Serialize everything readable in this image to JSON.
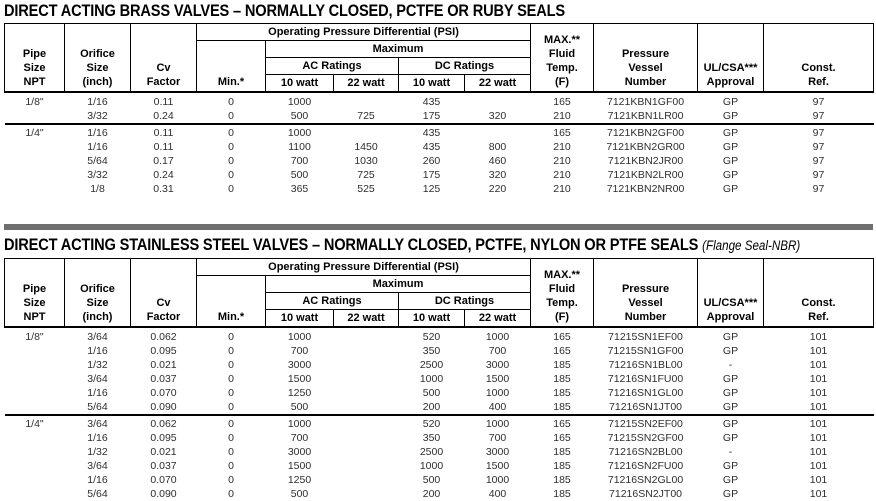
{
  "header": {
    "pipe_size": "Pipe\nSize\nNPT",
    "orifice_size": "Orifice\nSize\n(inch)",
    "cv_factor": "Cv\nFactor",
    "opd": "Operating Pressure Differential (PSI)",
    "maximum": "Maximum",
    "min": "Min.*",
    "ac_ratings": "AC Ratings",
    "dc_ratings": "DC Ratings",
    "watt_10": "10 watt",
    "watt_22": "22 watt",
    "max_temp": "MAX.**\nFluid\nTemp.\n(F)",
    "vessel": "Pressure\nVessel\nNumber",
    "approval": "UL/CSA***\nApproval",
    "const_ref": "Const.\nRef."
  },
  "column_keys": [
    "pipe-size",
    "orifice-size",
    "cv-factor",
    "min-psi",
    "ac-10watt",
    "ac-22watt",
    "dc-10watt",
    "dc-22watt",
    "max-fluid-temp",
    "pressure-vessel-number",
    "ul-csa-approval",
    "const-ref"
  ],
  "tables": [
    {
      "title": "DIRECT ACTING BRASS VALVES – NORMALLY CLOSED, PCTFE OR RUBY SEALS",
      "title_suffix": "",
      "row_groups": [
        {
          "rows": [
            [
              "1/8\"",
              "1/16",
              "0.11",
              "0",
              "1000",
              "",
              "435",
              "",
              "165",
              "7121KBN1GF00",
              "GP",
              "97"
            ],
            [
              "",
              "3/32",
              "0.24",
              "0",
              "500",
              "725",
              "175",
              "320",
              "210",
              "7121KBN1LR00",
              "GP",
              "97"
            ]
          ]
        },
        {
          "rows": [
            [
              "1/4\"",
              "1/16",
              "0.11",
              "0",
              "1000",
              "",
              "435",
              "",
              "165",
              "7121KBN2GF00",
              "GP",
              "97"
            ],
            [
              "",
              "1/16",
              "0.11",
              "0",
              "1100",
              "1450",
              "435",
              "800",
              "210",
              "7121KBN2GR00",
              "GP",
              "97"
            ],
            [
              "",
              "5/64",
              "0.17",
              "0",
              "700",
              "1030",
              "260",
              "460",
              "210",
              "7121KBN2JR00",
              "GP",
              "97"
            ],
            [
              "",
              "3/32",
              "0.24",
              "0",
              "500",
              "725",
              "175",
              "320",
              "210",
              "7121KBN2LR00",
              "GP",
              "97"
            ],
            [
              "",
              "1/8",
              "0.31",
              "0",
              "365",
              "525",
              "125",
              "220",
              "210",
              "7121KBN2NR00",
              "GP",
              "97"
            ]
          ]
        }
      ]
    },
    {
      "title": "DIRECT ACTING STAINLESS STEEL VALVES – NORMALLY CLOSED, PCTFE, NYLON OR PTFE SEALS",
      "title_suffix": "(Flange Seal-NBR)",
      "row_groups": [
        {
          "rows": [
            [
              "1/8\"",
              "3/64",
              "0.062",
              "0",
              "1000",
              "",
              "520",
              "1000",
              "165",
              "71215SN1EF00",
              "GP",
              "101"
            ],
            [
              "",
              "1/16",
              "0.095",
              "0",
              "700",
              "",
              "350",
              "700",
              "165",
              "71215SN1GF00",
              "GP",
              "101"
            ],
            [
              "",
              "1/32",
              "0.021",
              "0",
              "3000",
              "",
              "2500",
              "3000",
              "185",
              "71216SN1BL00",
              "-",
              "101"
            ],
            [
              "",
              "3/64",
              "0.037",
              "0",
              "1500",
              "",
              "1000",
              "1500",
              "185",
              "71216SN1FU00",
              "GP",
              "101"
            ],
            [
              "",
              "1/16",
              "0.070",
              "0",
              "1250",
              "",
              "500",
              "1000",
              "185",
              "71216SN1GL00",
              "GP",
              "101"
            ],
            [
              "",
              "5/64",
              "0.090",
              "0",
              "500",
              "",
              "200",
              "400",
              "185",
              "71216SN1JT00",
              "GP",
              "101"
            ]
          ]
        },
        {
          "rows": [
            [
              "1/4\"",
              "3/64",
              "0.062",
              "0",
              "1000",
              "",
              "520",
              "1000",
              "165",
              "71215SN2EF00",
              "GP",
              "101"
            ],
            [
              "",
              "1/16",
              "0.095",
              "0",
              "700",
              "",
              "350",
              "700",
              "165",
              "71215SN2GF00",
              "GP",
              "101"
            ],
            [
              "",
              "1/32",
              "0.021",
              "0",
              "3000",
              "",
              "2500",
              "3000",
              "185",
              "71216SN2BL00",
              "-",
              "101"
            ],
            [
              "",
              "3/64",
              "0.037",
              "0",
              "1500",
              "",
              "1000",
              "1500",
              "185",
              "71216SN2FU00",
              "GP",
              "101"
            ],
            [
              "",
              "1/16",
              "0.070",
              "0",
              "1250",
              "",
              "500",
              "1000",
              "185",
              "71216SN2GL00",
              "GP",
              "101"
            ],
            [
              "",
              "5/64",
              "0.090",
              "0",
              "500",
              "",
              "200",
              "400",
              "185",
              "71216SN2JT00",
              "GP",
              "101"
            ]
          ]
        }
      ]
    }
  ],
  "divider_color": "#6f6f6f"
}
